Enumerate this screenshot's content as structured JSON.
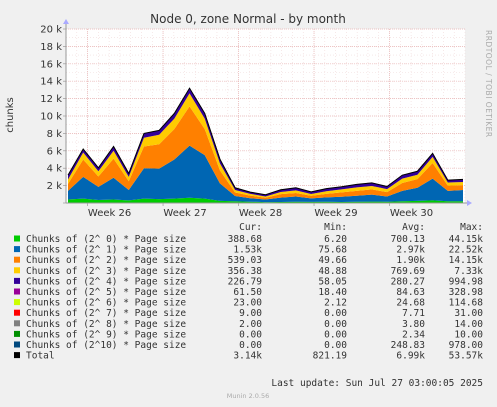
{
  "chart_data": {
    "type": "area",
    "stacked": true,
    "title": "Node 0, zone Normal - by month",
    "ylabel": "chunks",
    "xlabel": "",
    "side_label": "RRDTOOL / TOBI OETIKER",
    "ylim": [
      0,
      20000
    ],
    "y_ticks": [
      {
        "value": 0,
        "label": ""
      },
      {
        "value": 2000,
        "label": "2 k"
      },
      {
        "value": 4000,
        "label": "4 k"
      },
      {
        "value": 6000,
        "label": "6 k"
      },
      {
        "value": 8000,
        "label": "8 k"
      },
      {
        "value": 10000,
        "label": "10 k"
      },
      {
        "value": 12000,
        "label": "12 k"
      },
      {
        "value": 14000,
        "label": "14 k"
      },
      {
        "value": 16000,
        "label": "16 k"
      },
      {
        "value": 18000,
        "label": "18 k"
      },
      {
        "value": 20000,
        "label": "20 k"
      }
    ],
    "x_range": [
      "2025-06-21",
      "2025-07-28"
    ],
    "x_ticks": [
      {
        "date": "2025-06-23",
        "label": "Week 26"
      },
      {
        "date": "2025-06-30",
        "label": "Week 27"
      },
      {
        "date": "2025-07-07",
        "label": "Week 28"
      },
      {
        "date": "2025-07-14",
        "label": "Week 29"
      },
      {
        "date": "2025-07-21",
        "label": "Week 30"
      }
    ],
    "grid": true,
    "legend_columns": [
      "Cur:",
      "Min:",
      "Avg:",
      "Max:"
    ],
    "series": [
      {
        "name": "Chunks of (2^ 0) * Page size",
        "color": "#00cc00",
        "cur": "388.68",
        "min": "6.20",
        "avg": "700.13",
        "max": "44.15k"
      },
      {
        "name": "Chunks of (2^ 1) * Page size",
        "color": "#0066b3",
        "cur": "1.53k",
        "min": "75.68",
        "avg": "2.97k",
        "max": "22.52k"
      },
      {
        "name": "Chunks of (2^ 2) * Page size",
        "color": "#ff8000",
        "cur": "539.03",
        "min": "49.66",
        "avg": "1.90k",
        "max": "14.15k"
      },
      {
        "name": "Chunks of (2^ 3) * Page size",
        "color": "#ffcc00",
        "cur": "356.38",
        "min": "48.88",
        "avg": "769.69",
        "max": "7.33k"
      },
      {
        "name": "Chunks of (2^ 4) * Page size",
        "color": "#330099",
        "cur": "226.79",
        "min": "58.05",
        "avg": "280.27",
        "max": "994.98"
      },
      {
        "name": "Chunks of (2^ 5) * Page size",
        "color": "#990099",
        "cur": "61.50",
        "min": "18.40",
        "avg": "84.63",
        "max": "328.98"
      },
      {
        "name": "Chunks of (2^ 6) * Page size",
        "color": "#ccff00",
        "cur": "23.00",
        "min": "2.12",
        "avg": "24.68",
        "max": "114.68"
      },
      {
        "name": "Chunks of (2^ 7) * Page size",
        "color": "#ff0000",
        "cur": "9.00",
        "min": "0.00",
        "avg": "7.71",
        "max": "31.00"
      },
      {
        "name": "Chunks of (2^ 8) * Page size",
        "color": "#808080",
        "cur": "2.00",
        "min": "0.00",
        "avg": "3.80",
        "max": "14.00"
      },
      {
        "name": "Chunks of (2^ 9) * Page size",
        "color": "#008f00",
        "cur": "0.00",
        "min": "0.00",
        "avg": "2.34",
        "max": "10.00"
      },
      {
        "name": "Chunks of (2^10) * Page size",
        "color": "#00487d",
        "cur": "0.00",
        "min": "0.00",
        "avg": "248.83",
        "max": "978.00"
      },
      {
        "name": "Total",
        "color": "#000000",
        "cur": "3.14k",
        "min": "821.19",
        "avg": "6.99k",
        "max": "53.57k"
      }
    ],
    "plotted_series": [
      {
        "name": "Chunks of (2^ 0) * Page size",
        "color": "#00cc00",
        "values": [
          400,
          500,
          350,
          400,
          300,
          500,
          450,
          500,
          600,
          500,
          250,
          200,
          150,
          100,
          120,
          150,
          130,
          150,
          120,
          140,
          160,
          150,
          200,
          250,
          300,
          200,
          200
        ]
      },
      {
        "name": "Chunks of (2^ 1) * Page size",
        "color": "#0066b3",
        "values": [
          1000,
          2500,
          1500,
          2500,
          1200,
          3500,
          3500,
          4500,
          6000,
          5000,
          2000,
          600,
          400,
          300,
          500,
          600,
          400,
          500,
          600,
          700,
          800,
          600,
          1200,
          1500,
          2500,
          1200,
          1300
        ]
      },
      {
        "name": "Chunks of (2^ 2) * Page size",
        "color": "#ff8000",
        "values": [
          800,
          2000,
          1200,
          2200,
          1000,
          2500,
          2800,
          3500,
          4500,
          3000,
          1500,
          400,
          300,
          200,
          400,
          400,
          300,
          400,
          500,
          550,
          600,
          500,
          900,
          1000,
          1800,
          600,
          550
        ]
      },
      {
        "name": "Chunks of (2^ 3) * Page size",
        "color": "#ffcc00",
        "values": [
          500,
          800,
          600,
          900,
          500,
          1000,
          1100,
          1200,
          1500,
          1200,
          800,
          300,
          200,
          150,
          250,
          300,
          200,
          300,
          350,
          400,
          400,
          350,
          500,
          500,
          700,
          350,
          360
        ]
      },
      {
        "name": "Chunks of (2^ 4) * Page size",
        "color": "#330099",
        "values": [
          500,
          400,
          400,
          500,
          400,
          500,
          500,
          600,
          600,
          600,
          500,
          250,
          200,
          200,
          250,
          300,
          250,
          300,
          300,
          350,
          350,
          300,
          400,
          400,
          400,
          280,
          300
        ]
      }
    ]
  },
  "footer": {
    "last_update": "Last update: Sun Jul 27 03:00:05 2025",
    "version": "Munin 2.0.56"
  }
}
